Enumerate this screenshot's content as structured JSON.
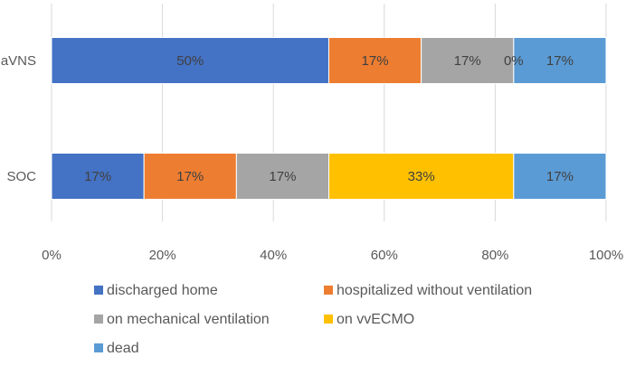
{
  "chart_data": {
    "type": "bar",
    "orientation": "horizontal",
    "stacked": "percent",
    "categories": [
      "aVNS",
      "SOC"
    ],
    "series": [
      {
        "name": "discharged home",
        "color": "#4472C4",
        "values": [
          50,
          16.67
        ],
        "labels": [
          "50%",
          "17%"
        ]
      },
      {
        "name": "hospitalized without ventilation",
        "color": "#ED7D31",
        "values": [
          16.67,
          16.67
        ],
        "labels": [
          "17%",
          "17%"
        ]
      },
      {
        "name": "on mechanical ventilation",
        "color": "#A5A5A5",
        "values": [
          16.67,
          16.67
        ],
        "labels": [
          "17%",
          "17%"
        ]
      },
      {
        "name": "on vvECMO",
        "color": "#FFC000",
        "values": [
          0,
          33.33
        ],
        "labels": [
          "0%",
          "33%"
        ]
      },
      {
        "name": "dead",
        "color": "#5B9BD5",
        "values": [
          16.67,
          16.67
        ],
        "labels": [
          "17%",
          "17%"
        ]
      }
    ],
    "x_ticks": [
      "0%",
      "20%",
      "40%",
      "60%",
      "80%",
      "100%"
    ],
    "xlim": [
      0,
      100
    ],
    "grid": true,
    "legend_position": "bottom"
  }
}
